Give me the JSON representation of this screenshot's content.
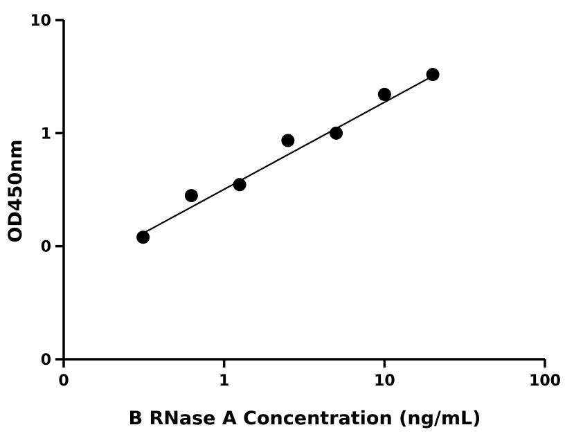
{
  "chart_data": {
    "type": "scatter",
    "title": "",
    "xlabel": "B RNase A Concentration (ng/mL)",
    "ylabel": "OD450nm",
    "x_scale": "log10",
    "y_scale": "log10",
    "xlim": [
      0.1,
      100
    ],
    "ylim": [
      0.01,
      10
    ],
    "x_tick_values": [
      0.1,
      1,
      10,
      100
    ],
    "x_tick_labels": [
      "0",
      "1",
      "10",
      "100"
    ],
    "y_tick_values": [
      0.01,
      0.1,
      1,
      10
    ],
    "y_tick_labels": [
      "0",
      "0",
      "1",
      "10"
    ],
    "grid": false,
    "legend": "none",
    "series": [
      {
        "points": [
          {
            "x": 0.3125,
            "y": 0.12
          },
          {
            "x": 0.625,
            "y": 0.28
          },
          {
            "x": 1.25,
            "y": 0.35
          },
          {
            "x": 2.5,
            "y": 0.86
          },
          {
            "x": 5,
            "y": 1.0
          },
          {
            "x": 10,
            "y": 2.2
          },
          {
            "x": 20,
            "y": 3.3
          }
        ]
      }
    ],
    "fit_line": {
      "x": [
        0.3125,
        20
      ],
      "y": [
        0.13,
        3.2
      ]
    },
    "colors": {
      "marker": "#000000",
      "line": "#000000",
      "axis": "#000000"
    }
  }
}
